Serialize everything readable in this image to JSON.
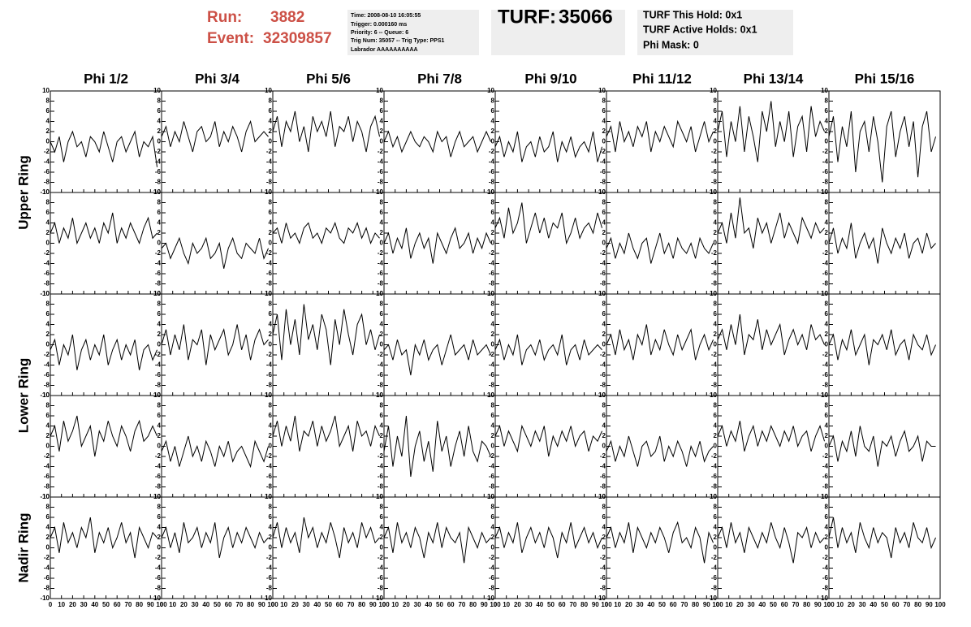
{
  "header": {
    "run_label": "Run:",
    "run": 3882,
    "event_label": "Event:",
    "event": 32309857,
    "info": [
      "Time: 2008-08-10 16:05:55",
      "Trigger: 0.000160 ms",
      "Priority: 6 -- Queue: 6",
      "Trig Num: 35057 -- Trig Type: PPS1",
      "Labrador AAAAAAAAAA"
    ],
    "turf_label": "TURF:",
    "turf": 35066,
    "turf_info": [
      "TURF This Hold: 0x1",
      "TURF Active Holds: 0x1",
      "Phi Mask: 0"
    ]
  },
  "columns": [
    "Phi 1/2",
    "Phi 3/4",
    "Phi 5/6",
    "Phi 7/8",
    "Phi 9/10",
    "Phi 11/12",
    "Phi 13/14",
    "Phi 15/16"
  ],
  "rings": [
    "Upper Ring",
    "Lower Ring",
    "Nadir Ring"
  ],
  "axes": {
    "xlim": [
      0,
      100
    ],
    "ylim": [
      -10,
      10
    ],
    "xticks": [
      0,
      10,
      20,
      30,
      40,
      50,
      60,
      70,
      80,
      90,
      100
    ],
    "yticks": [
      -10,
      -8,
      -6,
      -4,
      -2,
      0,
      2,
      4,
      6,
      8,
      10
    ]
  },
  "x": [
    0,
    4,
    8,
    12,
    16,
    20,
    24,
    28,
    32,
    36,
    40,
    44,
    48,
    52,
    56,
    60,
    64,
    68,
    72,
    76,
    80,
    84,
    88,
    92,
    96
  ],
  "chart_data": [
    {
      "type": "line",
      "values": [
        0,
        -2,
        1,
        -4,
        0,
        2,
        -1,
        0,
        -3,
        1,
        0,
        -2,
        2,
        -1,
        -4,
        0,
        1,
        -2,
        0,
        2,
        -3,
        0,
        -1,
        1,
        -5
      ]
    },
    {
      "type": "line",
      "values": [
        1,
        3,
        -1,
        2,
        0,
        4,
        1,
        -2,
        2,
        3,
        0,
        1,
        4,
        -1,
        2,
        0,
        3,
        1,
        -2,
        2,
        4,
        0,
        1,
        2,
        1
      ]
    },
    {
      "type": "line",
      "values": [
        2,
        5,
        -1,
        4,
        2,
        6,
        0,
        3,
        -2,
        5,
        2,
        4,
        1,
        6,
        -1,
        3,
        2,
        5,
        0,
        4,
        2,
        -2,
        3,
        5,
        1
      ]
    },
    {
      "type": "line",
      "values": [
        0,
        2,
        -1,
        1,
        -2,
        0,
        2,
        0,
        -1,
        1,
        0,
        -2,
        2,
        0,
        1,
        -3,
        0,
        2,
        -1,
        0,
        1,
        -2,
        0,
        2,
        0
      ]
    },
    {
      "type": "line",
      "values": [
        -1,
        1,
        -3,
        0,
        -2,
        2,
        -4,
        -1,
        0,
        -3,
        1,
        -2,
        -1,
        2,
        -4,
        0,
        -2,
        1,
        -3,
        -1,
        0,
        -2,
        2,
        -4,
        -1
      ]
    },
    {
      "type": "line",
      "values": [
        1,
        3,
        -2,
        4,
        0,
        2,
        -1,
        3,
        1,
        4,
        -2,
        2,
        0,
        3,
        1,
        -1,
        4,
        2,
        0,
        3,
        -2,
        1,
        4,
        0,
        2
      ]
    },
    {
      "type": "line",
      "values": [
        2,
        6,
        -3,
        4,
        0,
        7,
        -2,
        5,
        1,
        -4,
        6,
        2,
        8,
        -1,
        4,
        0,
        6,
        -3,
        3,
        5,
        -2,
        7,
        1,
        4,
        2
      ]
    },
    {
      "type": "line",
      "values": [
        1,
        5,
        -4,
        3,
        -1,
        6,
        -6,
        2,
        4,
        -2,
        5,
        0,
        -8,
        3,
        6,
        -3,
        2,
        5,
        -1,
        4,
        -7,
        3,
        6,
        -2,
        1
      ]
    },
    {
      "type": "line",
      "values": [
        2,
        4,
        0,
        3,
        1,
        5,
        0,
        2,
        4,
        1,
        3,
        0,
        4,
        2,
        6,
        0,
        3,
        1,
        4,
        2,
        0,
        3,
        5,
        1,
        2
      ]
    },
    {
      "type": "line",
      "values": [
        -1,
        0,
        -3,
        -1,
        1,
        -2,
        -4,
        0,
        -2,
        -1,
        1,
        -3,
        -2,
        0,
        -5,
        -1,
        1,
        -2,
        -3,
        0,
        -1,
        -2,
        1,
        -3,
        -1
      ]
    },
    {
      "type": "line",
      "values": [
        2,
        3,
        0,
        4,
        1,
        2,
        0,
        3,
        4,
        1,
        2,
        0,
        3,
        2,
        4,
        1,
        0,
        3,
        2,
        4,
        1,
        3,
        0,
        2,
        1
      ]
    },
    {
      "type": "line",
      "values": [
        0,
        2,
        -2,
        1,
        -1,
        3,
        -3,
        0,
        2,
        -1,
        1,
        -4,
        2,
        0,
        -2,
        1,
        3,
        -1,
        0,
        2,
        -2,
        1,
        -1,
        2,
        0
      ]
    },
    {
      "type": "line",
      "values": [
        3,
        5,
        1,
        7,
        2,
        4,
        8,
        0,
        3,
        6,
        2,
        5,
        1,
        4,
        3,
        6,
        0,
        2,
        5,
        1,
        3,
        4,
        2,
        6,
        3
      ]
    },
    {
      "type": "line",
      "values": [
        -1,
        1,
        -3,
        0,
        -2,
        2,
        -1,
        -3,
        0,
        1,
        -4,
        -1,
        2,
        -2,
        0,
        -3,
        1,
        -1,
        -2,
        0,
        -3,
        1,
        -1,
        -2,
        0
      ]
    },
    {
      "type": "line",
      "values": [
        2,
        4,
        0,
        6,
        1,
        9,
        2,
        3,
        -1,
        5,
        2,
        4,
        0,
        3,
        6,
        1,
        4,
        2,
        0,
        5,
        3,
        1,
        4,
        2,
        3
      ]
    },
    {
      "type": "line",
      "values": [
        0,
        3,
        -2,
        1,
        -1,
        4,
        -3,
        0,
        2,
        -1,
        1,
        -4,
        3,
        0,
        -2,
        1,
        -1,
        2,
        -3,
        0,
        1,
        -2,
        2,
        -1,
        0
      ]
    },
    {
      "type": "line",
      "values": [
        -1,
        1,
        -4,
        0,
        -2,
        2,
        -5,
        -1,
        1,
        -3,
        0,
        -2,
        2,
        -4,
        -1,
        1,
        -3,
        0,
        -2,
        1,
        -5,
        -1,
        0,
        -3,
        -1
      ]
    },
    {
      "type": "line",
      "values": [
        0,
        3,
        -2,
        2,
        -1,
        4,
        -3,
        1,
        0,
        3,
        -4,
        2,
        -1,
        1,
        3,
        -2,
        0,
        4,
        -1,
        2,
        -3,
        1,
        3,
        0,
        1
      ]
    },
    {
      "type": "line",
      "values": [
        2,
        6,
        -3,
        7,
        0,
        5,
        -2,
        8,
        1,
        4,
        -1,
        6,
        3,
        -4,
        5,
        0,
        7,
        2,
        -2,
        4,
        6,
        0,
        3,
        -1,
        2
      ]
    },
    {
      "type": "line",
      "values": [
        -1,
        0,
        -3,
        1,
        -2,
        -1,
        -6,
        0,
        -2,
        1,
        -3,
        -1,
        0,
        -4,
        -1,
        2,
        -2,
        -1,
        0,
        -3,
        1,
        -2,
        -1,
        0,
        -2
      ]
    },
    {
      "type": "line",
      "values": [
        -1,
        1,
        -3,
        0,
        -2,
        2,
        -4,
        -1,
        0,
        -2,
        1,
        -3,
        -1,
        0,
        -2,
        2,
        -4,
        -1,
        0,
        -3,
        1,
        -2,
        -1,
        0,
        -1
      ]
    },
    {
      "type": "line",
      "values": [
        0,
        2,
        -2,
        3,
        -1,
        1,
        -3,
        2,
        0,
        4,
        -2,
        1,
        -1,
        3,
        0,
        -2,
        2,
        -1,
        1,
        3,
        -3,
        0,
        2,
        -1,
        1
      ]
    },
    {
      "type": "line",
      "values": [
        1,
        3,
        -1,
        4,
        0,
        6,
        -2,
        2,
        1,
        5,
        -1,
        3,
        0,
        2,
        4,
        -2,
        1,
        3,
        0,
        2,
        -1,
        4,
        1,
        2,
        0
      ]
    },
    {
      "type": "line",
      "values": [
        0,
        2,
        -3,
        1,
        -1,
        3,
        -2,
        0,
        2,
        -4,
        1,
        0,
        2,
        -1,
        3,
        -2,
        0,
        1,
        -3,
        2,
        0,
        -1,
        2,
        -2,
        0
      ]
    },
    {
      "type": "line",
      "values": [
        2,
        4,
        -1,
        5,
        1,
        3,
        6,
        0,
        2,
        4,
        -2,
        3,
        1,
        5,
        2,
        0,
        4,
        2,
        -1,
        3,
        5,
        1,
        2,
        4,
        2
      ]
    },
    {
      "type": "line",
      "values": [
        -1,
        1,
        -3,
        0,
        -4,
        -1,
        2,
        -2,
        0,
        -3,
        1,
        -1,
        -4,
        0,
        -2,
        1,
        -3,
        -1,
        0,
        -2,
        -4,
        1,
        -1,
        -3,
        0
      ]
    },
    {
      "type": "line",
      "values": [
        2,
        5,
        0,
        4,
        1,
        6,
        -1,
        3,
        2,
        5,
        0,
        4,
        1,
        3,
        6,
        0,
        2,
        4,
        -1,
        5,
        2,
        3,
        0,
        4,
        2
      ]
    },
    {
      "type": "line",
      "values": [
        -1,
        4,
        -4,
        2,
        -2,
        6,
        -6,
        0,
        3,
        -3,
        1,
        -5,
        5,
        -1,
        2,
        -4,
        0,
        3,
        -2,
        4,
        -1,
        -3,
        1,
        0,
        -2
      ]
    },
    {
      "type": "line",
      "values": [
        2,
        4,
        0,
        3,
        1,
        -1,
        4,
        2,
        0,
        3,
        1,
        4,
        -2,
        2,
        0,
        3,
        1,
        4,
        0,
        2,
        3,
        -1,
        2,
        1,
        3
      ]
    },
    {
      "type": "line",
      "values": [
        -1,
        1,
        -3,
        0,
        -2,
        2,
        -1,
        -4,
        0,
        1,
        -2,
        -1,
        2,
        -3,
        0,
        -2,
        1,
        -1,
        -4,
        0,
        -2,
        1,
        -3,
        -1,
        0
      ]
    },
    {
      "type": "line",
      "values": [
        2,
        4,
        0,
        3,
        1,
        5,
        -1,
        2,
        4,
        0,
        3,
        1,
        4,
        2,
        0,
        3,
        1,
        4,
        0,
        2,
        3,
        -1,
        2,
        4,
        1
      ]
    },
    {
      "type": "line",
      "values": [
        0,
        2,
        -3,
        1,
        -1,
        3,
        -2,
        4,
        0,
        -1,
        2,
        -4,
        1,
        0,
        2,
        -2,
        1,
        3,
        -1,
        0,
        2,
        -3,
        1,
        0,
        0
      ]
    },
    {
      "type": "line",
      "values": [
        2,
        4,
        -1,
        5,
        1,
        3,
        0,
        4,
        2,
        6,
        -1,
        3,
        1,
        4,
        0,
        2,
        5,
        1,
        3,
        -2,
        4,
        2,
        0,
        3,
        2
      ]
    },
    {
      "type": "line",
      "values": [
        2,
        4,
        0,
        3,
        -1,
        5,
        1,
        2,
        4,
        0,
        3,
        1,
        5,
        -2,
        2,
        4,
        0,
        3,
        1,
        4,
        2,
        0,
        3,
        1,
        2
      ]
    },
    {
      "type": "line",
      "values": [
        2,
        5,
        0,
        4,
        1,
        3,
        -1,
        6,
        2,
        4,
        0,
        3,
        1,
        5,
        2,
        -2,
        4,
        1,
        3,
        0,
        5,
        2,
        4,
        1,
        2
      ]
    },
    {
      "type": "line",
      "values": [
        2,
        4,
        -1,
        5,
        1,
        3,
        0,
        4,
        2,
        -2,
        3,
        1,
        5,
        0,
        4,
        2,
        1,
        3,
        -3,
        4,
        2,
        0,
        3,
        1,
        2
      ]
    },
    {
      "type": "line",
      "values": [
        2,
        4,
        0,
        3,
        1,
        5,
        -1,
        2,
        4,
        1,
        3,
        0,
        4,
        2,
        -2,
        3,
        1,
        5,
        0,
        2,
        4,
        1,
        3,
        0,
        2
      ]
    },
    {
      "type": "line",
      "values": [
        2,
        4,
        0,
        3,
        1,
        5,
        -1,
        4,
        2,
        0,
        3,
        1,
        4,
        2,
        -1,
        3,
        5,
        1,
        2,
        0,
        4,
        2,
        -3,
        3,
        1
      ]
    },
    {
      "type": "line",
      "values": [
        2,
        4,
        0,
        5,
        1,
        3,
        -1,
        4,
        2,
        0,
        3,
        1,
        5,
        2,
        0,
        4,
        1,
        -3,
        3,
        2,
        4,
        0,
        3,
        1,
        2
      ]
    },
    {
      "type": "line",
      "values": [
        2,
        6,
        0,
        4,
        1,
        3,
        -1,
        5,
        2,
        0,
        4,
        1,
        3,
        2,
        -2,
        4,
        1,
        3,
        0,
        5,
        2,
        1,
        4,
        0,
        2
      ]
    }
  ]
}
